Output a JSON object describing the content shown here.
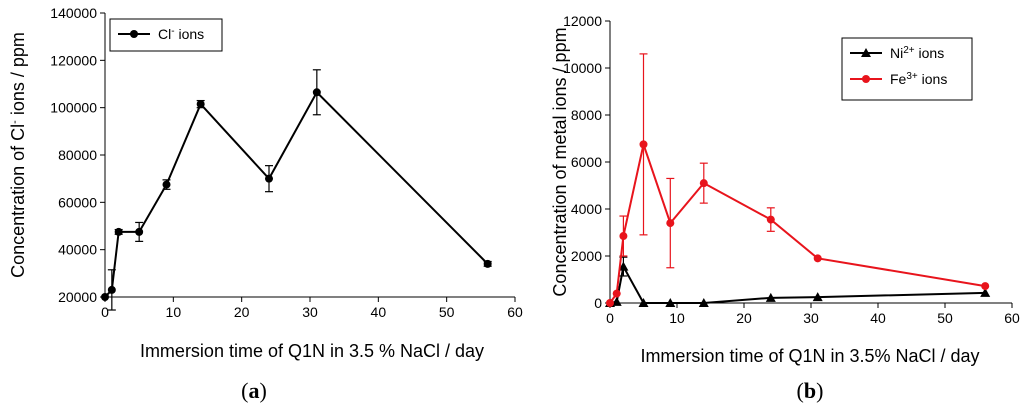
{
  "chart_data": [
    {
      "panel_label": "a",
      "type": "line",
      "xlabel": "Immersion time of Q1N in 3.5 % NaCl / day",
      "ylabel": {
        "pre": "Concentration of Cl",
        "sup": "-",
        "post": " ions / ppm"
      },
      "xlim": [
        0,
        60
      ],
      "ylim": [
        20000,
        140000
      ],
      "xticks": [
        0,
        10,
        20,
        30,
        40,
        50,
        60
      ],
      "yticks": [
        20000,
        40000,
        60000,
        80000,
        100000,
        120000,
        140000
      ],
      "legend_position": "top-left",
      "series": [
        {
          "name": "Cl- ions",
          "legend": {
            "pre": "Cl",
            "sup": "-",
            "post": " ions"
          },
          "color": "#000000",
          "marker": "circle",
          "x": [
            0,
            1,
            2,
            5,
            9,
            14,
            24,
            31,
            56
          ],
          "y": [
            20000,
            23000,
            47500,
            47500,
            67500,
            101500,
            70000,
            106500,
            34000
          ],
          "err": [
            0,
            8500,
            1000,
            4000,
            2000,
            1500,
            5500,
            9500,
            1000
          ]
        }
      ]
    },
    {
      "panel_label": "b",
      "type": "line",
      "xlabel": "Immersion time of Q1N in 3.5% NaCl / day",
      "ylabel": {
        "pre": "Concentration of metal ions / ppm",
        "sup": "",
        "post": ""
      },
      "xlim": [
        0,
        60
      ],
      "ylim": [
        0,
        12000
      ],
      "xticks": [
        0,
        10,
        20,
        30,
        40,
        50,
        60
      ],
      "yticks": [
        0,
        2000,
        4000,
        6000,
        8000,
        10000,
        12000
      ],
      "legend_position": "top-right",
      "series": [
        {
          "name": "Ni2+ ions",
          "legend": {
            "pre": "Ni",
            "sup": "2+",
            "post": " ions"
          },
          "color": "#000000",
          "marker": "triangle",
          "x": [
            0,
            1,
            2,
            5,
            9,
            14,
            24,
            31,
            56
          ],
          "y": [
            0,
            50,
            1550,
            0,
            0,
            0,
            220,
            250,
            430
          ],
          "err": [
            0,
            0,
            400,
            0,
            0,
            0,
            0,
            0,
            0
          ]
        },
        {
          "name": "Fe3+ ions",
          "legend": {
            "pre": "Fe",
            "sup": "3+",
            "post": " ions"
          },
          "color": "#e8141c",
          "marker": "circle",
          "x": [
            0,
            1,
            2,
            5,
            9,
            14,
            24,
            31,
            56
          ],
          "y": [
            0,
            400,
            2850,
            6750,
            3400,
            5100,
            3550,
            1900,
            720
          ],
          "err": [
            0,
            0,
            850,
            3850,
            1900,
            850,
            500,
            0,
            0
          ]
        }
      ]
    }
  ]
}
